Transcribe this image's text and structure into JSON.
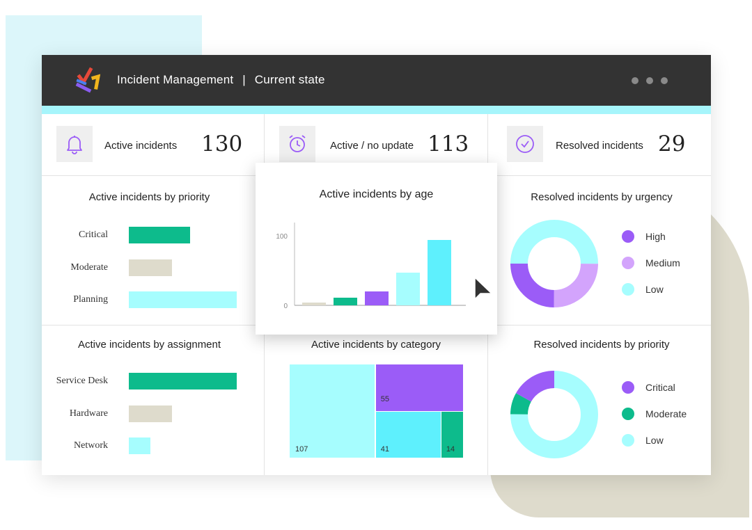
{
  "window": {
    "title": "Incident Management",
    "separator": "|",
    "subtitle": "Current state"
  },
  "kpis": [
    {
      "label": "Active incidents",
      "value": "130",
      "icon": "bell-icon"
    },
    {
      "label": "Active / no update",
      "value": "113",
      "icon": "alarm-clock-icon"
    },
    {
      "label": "Resolved incidents",
      "value": "29",
      "icon": "check-circle-icon"
    }
  ],
  "colors": {
    "green": "#0dbb8c",
    "khaki": "#dedbcc",
    "cyan": "#a6fdfe",
    "cyan_dark": "#5ef0fd",
    "purple": "#9b5cf7",
    "lavender": "#d3a4fc"
  },
  "panels": {
    "priority": {
      "title": "Active incidents by priority"
    },
    "age": {
      "title": "Active incidents by age"
    },
    "urgency": {
      "title": "Resolved incidents by urgency"
    },
    "assignment": {
      "title": "Active incidents by assignment"
    },
    "category": {
      "title": "Active incidents by category"
    },
    "resolved_priority": {
      "title": "Resolved incidents by priority"
    }
  },
  "chart_data": [
    {
      "type": "bar",
      "orientation": "horizontal",
      "title": "Active incidents by priority",
      "categories": [
        "Critical",
        "Moderate",
        "Planning"
      ],
      "values": [
        57,
        40,
        100
      ]
    },
    {
      "type": "bar",
      "title": "Active incidents by age",
      "categories": [
        "",
        "",
        "",
        "",
        ""
      ],
      "values": [
        4,
        11,
        20,
        47,
        94
      ],
      "ylim": [
        0,
        100
      ],
      "yticks": [
        "0",
        "100"
      ]
    },
    {
      "type": "pie",
      "donut": true,
      "title": "Resolved incidents by urgency",
      "labels": [
        "High",
        "Medium",
        "Low"
      ],
      "values": [
        25,
        25,
        50
      ]
    },
    {
      "type": "bar",
      "orientation": "horizontal",
      "title": "Active incidents by assignment",
      "categories": [
        "Service Desk",
        "Hardware",
        "Network"
      ],
      "values": [
        100,
        40,
        20
      ]
    },
    {
      "type": "treemap",
      "title": "Active incidents by category",
      "labels": [
        "107",
        "55",
        "41",
        "14"
      ],
      "values": [
        107,
        55,
        41,
        14
      ]
    },
    {
      "type": "pie",
      "donut": true,
      "title": "Resolved incidents by priority",
      "labels": [
        "Critical",
        "Moderate",
        "Low"
      ],
      "values": [
        17,
        8,
        75
      ]
    }
  ]
}
